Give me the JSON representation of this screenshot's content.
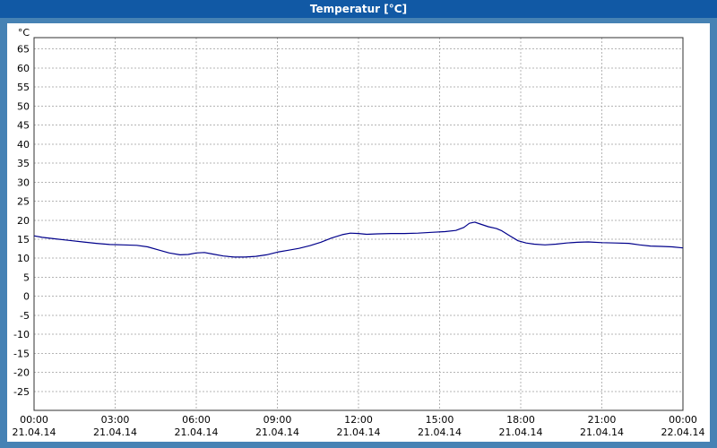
{
  "window": {
    "title": "Temperatur [°C]"
  },
  "colors": {
    "frame": "#4682b4",
    "titlebar": "#1159a5",
    "title_text": "#ffffff",
    "plot_background": "#ffffff",
    "plot_border": "#303030",
    "grid": "#b4b4b4",
    "line": "#00008b",
    "tick_text": "#000000"
  },
  "chart_data": {
    "type": "line",
    "title": "Temperatur [°C]",
    "unit_label": "°C",
    "grid": true,
    "legend_position": "none",
    "xlim": [
      0,
      24
    ],
    "ylim": [
      -30,
      68
    ],
    "y_ticks": [
      65,
      60,
      55,
      50,
      45,
      40,
      35,
      30,
      25,
      20,
      15,
      10,
      5,
      0,
      -5,
      -10,
      -15,
      -20,
      -25
    ],
    "x_ticks": [
      {
        "hour": 0,
        "time": "00:00",
        "date": "21.04.14"
      },
      {
        "hour": 3,
        "time": "03:00",
        "date": "21.04.14"
      },
      {
        "hour": 6,
        "time": "06:00",
        "date": "21.04.14"
      },
      {
        "hour": 9,
        "time": "09:00",
        "date": "21.04.14"
      },
      {
        "hour": 12,
        "time": "12:00",
        "date": "21.04.14"
      },
      {
        "hour": 15,
        "time": "15:00",
        "date": "21.04.14"
      },
      {
        "hour": 18,
        "time": "18:00",
        "date": "21.04.14"
      },
      {
        "hour": 21,
        "time": "21:00",
        "date": "21.04.14"
      },
      {
        "hour": 24,
        "time": "00:00",
        "date": "22.04.14"
      }
    ],
    "series": [
      {
        "name": "Temperatur",
        "color": "#00008b",
        "points": [
          [
            0,
            15.9
          ],
          [
            0.3,
            15.5
          ],
          [
            0.8,
            15.1
          ],
          [
            1.3,
            14.7
          ],
          [
            1.8,
            14.3
          ],
          [
            2.3,
            13.9
          ],
          [
            2.8,
            13.6
          ],
          [
            3.3,
            13.5
          ],
          [
            3.8,
            13.4
          ],
          [
            4.2,
            13.0
          ],
          [
            4.6,
            12.2
          ],
          [
            5.0,
            11.4
          ],
          [
            5.4,
            10.9
          ],
          [
            5.7,
            11.0
          ],
          [
            6.0,
            11.4
          ],
          [
            6.3,
            11.5
          ],
          [
            6.6,
            11.1
          ],
          [
            7.0,
            10.6
          ],
          [
            7.4,
            10.3
          ],
          [
            7.8,
            10.3
          ],
          [
            8.2,
            10.5
          ],
          [
            8.6,
            10.9
          ],
          [
            9.0,
            11.6
          ],
          [
            9.4,
            12.1
          ],
          [
            9.8,
            12.6
          ],
          [
            10.2,
            13.3
          ],
          [
            10.6,
            14.2
          ],
          [
            11.0,
            15.3
          ],
          [
            11.4,
            16.2
          ],
          [
            11.7,
            16.6
          ],
          [
            12.0,
            16.5
          ],
          [
            12.3,
            16.3
          ],
          [
            12.7,
            16.4
          ],
          [
            13.2,
            16.5
          ],
          [
            13.7,
            16.5
          ],
          [
            14.2,
            16.6
          ],
          [
            14.7,
            16.8
          ],
          [
            15.2,
            17.0
          ],
          [
            15.6,
            17.3
          ],
          [
            15.9,
            18.1
          ],
          [
            16.1,
            19.2
          ],
          [
            16.3,
            19.5
          ],
          [
            16.5,
            19.0
          ],
          [
            16.8,
            18.3
          ],
          [
            17.1,
            17.8
          ],
          [
            17.3,
            17.2
          ],
          [
            17.6,
            15.9
          ],
          [
            17.9,
            14.6
          ],
          [
            18.2,
            14.0
          ],
          [
            18.5,
            13.7
          ],
          [
            18.9,
            13.5
          ],
          [
            19.3,
            13.7
          ],
          [
            19.7,
            14.0
          ],
          [
            20.1,
            14.2
          ],
          [
            20.5,
            14.3
          ],
          [
            21.0,
            14.1
          ],
          [
            21.5,
            14.0
          ],
          [
            22.0,
            13.9
          ],
          [
            22.4,
            13.5
          ],
          [
            22.8,
            13.2
          ],
          [
            23.2,
            13.1
          ],
          [
            23.6,
            13.0
          ],
          [
            24.0,
            12.7
          ]
        ]
      }
    ]
  }
}
